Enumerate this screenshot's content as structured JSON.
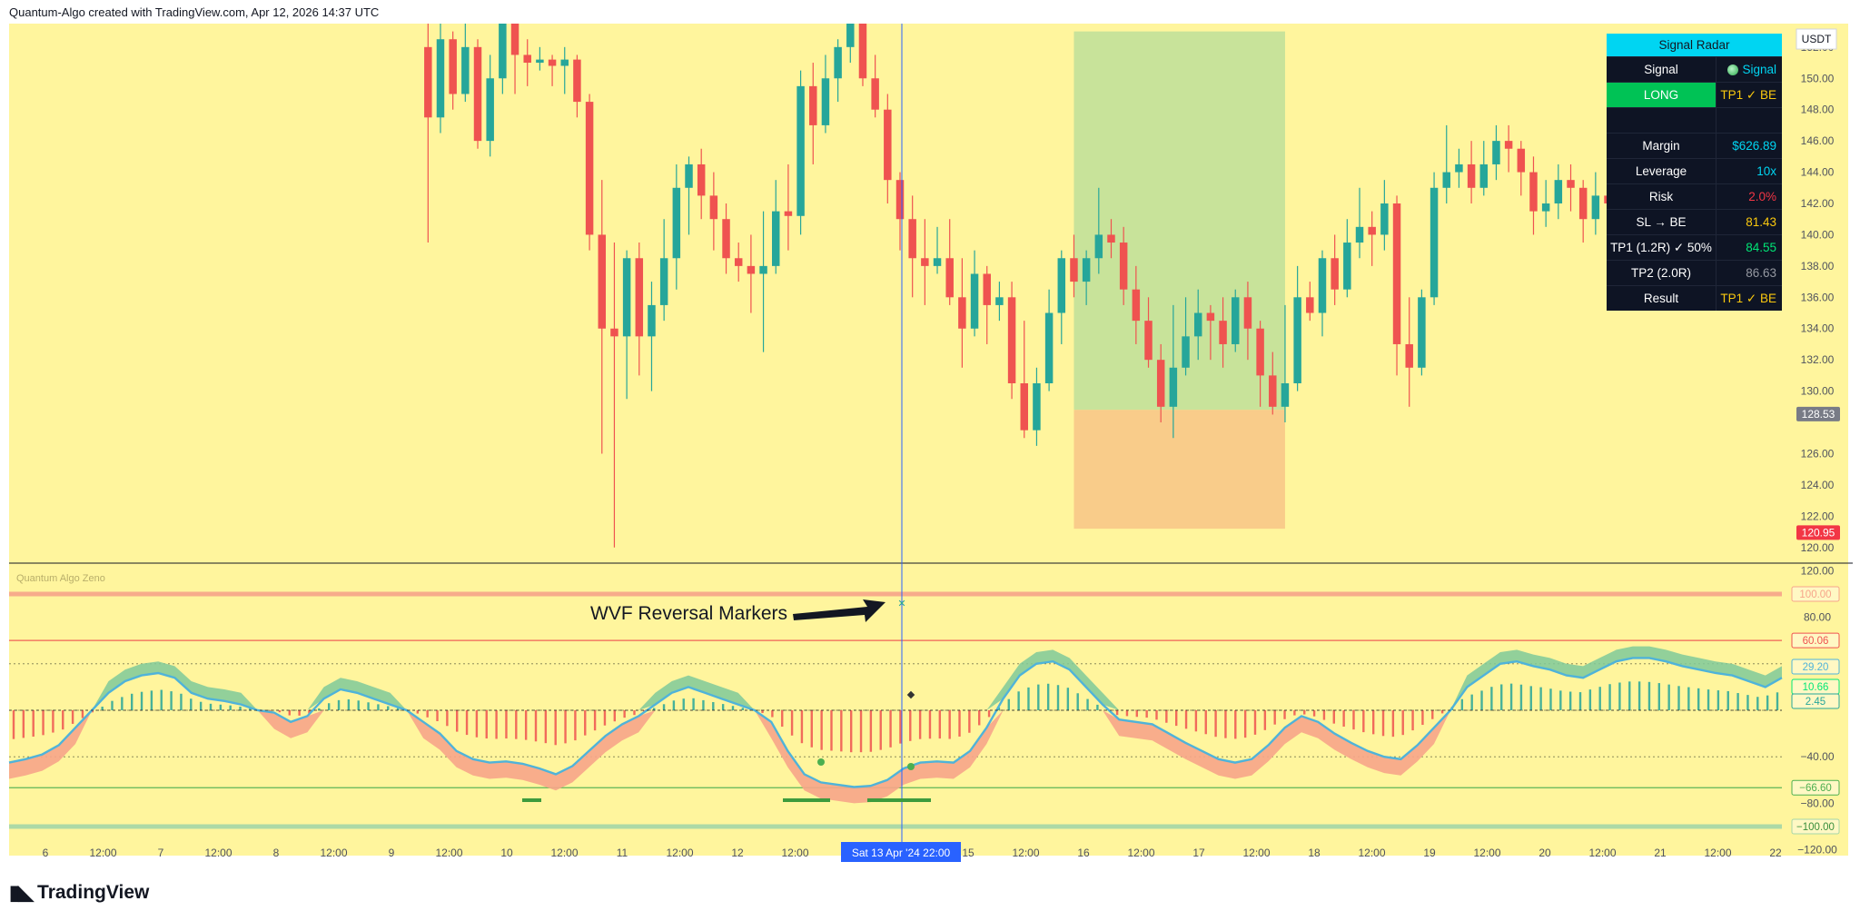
{
  "header": {
    "attribution": "Quantum-Algo created with TradingView.com, Apr 12, 2026 14:37 UTC"
  },
  "branding": {
    "logo_text": "TradingView",
    "logo_icon": "tradingview-logo-icon"
  },
  "indicator": {
    "name": "Quantum Algo Zeno"
  },
  "annotation": {
    "text": "WVF Reversal Markers"
  },
  "crosshair": {
    "date_label": "Sat 13 Apr '24   22:00"
  },
  "colors": {
    "background": "#fff59d",
    "bull": "#26a69a",
    "bear": "#ef5350",
    "profit_zone": "#c8e39a",
    "loss_zone": "#f9cc8a",
    "wave_line": "#4fb3d9",
    "wave_up_fill": "#7fc99a",
    "wave_down_fill": "#f7a58a",
    "crosshair": "#2962ff"
  },
  "signal_radar": {
    "title": "Signal Radar",
    "rows": [
      {
        "label": "Signal",
        "value": "Signal",
        "value_color": "#00d5f2",
        "icon": "green-dot-icon"
      },
      {
        "label": "LONG",
        "value": "TP1 ✓ BE",
        "value_color": "#f9c80e",
        "highlight": true
      },
      {
        "label": "",
        "value": ""
      },
      {
        "label": "Margin",
        "value": "$626.89",
        "value_color": "#00d5f2"
      },
      {
        "label": "Leverage",
        "value": "10x",
        "value_color": "#00d5f2"
      },
      {
        "label": "Risk",
        "value": "2.0%",
        "value_color": "#f23645"
      },
      {
        "label": "SL → BE",
        "value": "81.43",
        "value_color": "#f9c80e"
      },
      {
        "label": "TP1 (1.2R) ✓ 50%",
        "value": "84.55",
        "value_color": "#00e676"
      },
      {
        "label": "TP2 (2.0R)",
        "value": "86.63",
        "value_color": "#9598a1"
      },
      {
        "label": "Result",
        "value": "TP1 ✓ BE",
        "value_color": "#f9c80e"
      }
    ]
  },
  "chart_data": [
    {
      "type": "candlestick",
      "currency": "USDT",
      "ylim": [
        119,
        153.5
      ],
      "y_ticks": [
        "152.00",
        "150.00",
        "148.00",
        "146.00",
        "144.00",
        "142.00",
        "140.00",
        "138.00",
        "136.00",
        "134.00",
        "132.00",
        "130.00",
        "126.00",
        "124.00",
        "122.00",
        "120.00"
      ],
      "price_labels": [
        {
          "value": "128.53",
          "price": 128.53,
          "color": "#787b86"
        },
        {
          "value": "120.95",
          "price": 120.95,
          "color": "#f23645"
        }
      ],
      "x_labels": [
        "6",
        "12:00",
        "7",
        "12:00",
        "8",
        "12:00",
        "9",
        "12:00",
        "10",
        "12:00",
        "11",
        "12:00",
        "12",
        "12:00",
        "13",
        "00",
        "15",
        "12:00",
        "16",
        "12:00",
        "17",
        "12:00",
        "18",
        "12:00",
        "19",
        "12:00",
        "20",
        "12:00",
        "21",
        "12:00",
        "22"
      ],
      "trade_zone": {
        "entry": 128.8,
        "take_profit": 153.0,
        "stop_loss": 121.2,
        "start_index": 52,
        "end_index": 69
      },
      "candles": [
        [
          0,
          152.0,
          147.5,
          153.5,
          139.5
        ],
        [
          1,
          147.5,
          152.5,
          153.5,
          146.5
        ],
        [
          2,
          152.5,
          149.0,
          153.0,
          148.0
        ],
        [
          3,
          149.0,
          152.0,
          153.5,
          148.5
        ],
        [
          4,
          152.0,
          146.0,
          152.5,
          145.5
        ],
        [
          5,
          146.0,
          150.0,
          151.5,
          145.0
        ],
        [
          6,
          150.0,
          153.5,
          153.5,
          149.0
        ],
        [
          7,
          153.5,
          151.5,
          153.5,
          149.0
        ],
        [
          8,
          151.5,
          151.0,
          152.5,
          149.5
        ],
        [
          9,
          151.0,
          151.2,
          152.0,
          150.5
        ],
        [
          10,
          151.2,
          150.8,
          151.5,
          149.5
        ],
        [
          11,
          150.8,
          151.2,
          152.0,
          149.0
        ],
        [
          12,
          151.2,
          148.5,
          151.5,
          147.5
        ],
        [
          13,
          148.5,
          140.0,
          149.0,
          139.0
        ],
        [
          14,
          140.0,
          134.0,
          143.5,
          126.0
        ],
        [
          15,
          134.0,
          133.5,
          139.5,
          120.0
        ],
        [
          16,
          133.5,
          138.5,
          139.0,
          129.5
        ],
        [
          17,
          138.5,
          133.5,
          139.5,
          131.0
        ],
        [
          18,
          133.5,
          135.5,
          137.0,
          130.0
        ],
        [
          19,
          135.5,
          138.5,
          141.0,
          134.5
        ],
        [
          20,
          138.5,
          143.0,
          144.5,
          136.5
        ],
        [
          21,
          143.0,
          144.5,
          145.0,
          140.0
        ],
        [
          22,
          144.5,
          142.5,
          145.5,
          141.0
        ],
        [
          23,
          142.5,
          141.0,
          144.0,
          139.0
        ],
        [
          24,
          141.0,
          138.5,
          142.0,
          137.5
        ],
        [
          25,
          138.5,
          138.0,
          139.5,
          137.0
        ],
        [
          26,
          138.0,
          137.5,
          140.0,
          135.0
        ],
        [
          27,
          137.5,
          138.0,
          141.5,
          132.5
        ],
        [
          28,
          138.0,
          141.5,
          143.5,
          137.5
        ],
        [
          29,
          141.5,
          141.2,
          144.5,
          139.0
        ],
        [
          30,
          141.2,
          149.5,
          150.5,
          140.0
        ],
        [
          31,
          149.5,
          147.0,
          151.0,
          144.5
        ],
        [
          32,
          147.0,
          150.0,
          151.5,
          146.5
        ],
        [
          33,
          150.0,
          152.0,
          152.5,
          148.5
        ],
        [
          34,
          152.0,
          154.0,
          154.5,
          151.0
        ],
        [
          35,
          154.0,
          150.0,
          155.0,
          149.5
        ],
        [
          36,
          150.0,
          148.0,
          151.5,
          147.5
        ],
        [
          37,
          148.0,
          143.5,
          149.0,
          142.0
        ],
        [
          38,
          143.5,
          141.0,
          144.0,
          139.0
        ],
        [
          39,
          141.0,
          138.5,
          142.5,
          136.0
        ],
        [
          40,
          138.5,
          138.0,
          141.0,
          135.5
        ],
        [
          41,
          138.0,
          138.5,
          140.5,
          137.5
        ],
        [
          42,
          138.5,
          136.0,
          141.0,
          135.5
        ],
        [
          43,
          136.0,
          134.0,
          138.5,
          131.5
        ],
        [
          44,
          134.0,
          137.5,
          139.0,
          133.5
        ],
        [
          45,
          137.5,
          135.5,
          138.0,
          133.0
        ],
        [
          46,
          135.5,
          136.0,
          137.0,
          134.5
        ],
        [
          47,
          136.0,
          130.5,
          137.0,
          129.5
        ],
        [
          48,
          130.5,
          127.5,
          134.5,
          127.0
        ],
        [
          49,
          127.5,
          130.5,
          131.5,
          126.5
        ],
        [
          50,
          130.5,
          135.0,
          136.5,
          130.0
        ],
        [
          51,
          135.0,
          138.5,
          139.0,
          133.0
        ],
        [
          52,
          138.5,
          137.0,
          140.0,
          136.0
        ],
        [
          53,
          137.0,
          138.5,
          139.0,
          135.5
        ],
        [
          54,
          138.5,
          140.0,
          143.0,
          137.5
        ],
        [
          55,
          140.0,
          139.5,
          141.0,
          138.5
        ],
        [
          56,
          139.5,
          136.5,
          140.5,
          135.5
        ],
        [
          57,
          136.5,
          134.5,
          138.0,
          133.0
        ],
        [
          58,
          134.5,
          132.0,
          136.0,
          131.5
        ],
        [
          59,
          132.0,
          129.0,
          133.0,
          128.0
        ],
        [
          60,
          129.0,
          131.5,
          135.5,
          127.0
        ],
        [
          61,
          131.5,
          133.5,
          136.0,
          131.0
        ],
        [
          62,
          133.5,
          135.0,
          136.5,
          132.0
        ],
        [
          63,
          135.0,
          134.5,
          135.5,
          132.0
        ],
        [
          64,
          134.5,
          133.0,
          136.0,
          131.5
        ],
        [
          65,
          133.0,
          136.0,
          136.5,
          132.5
        ],
        [
          66,
          136.0,
          134.0,
          137.0,
          132.0
        ],
        [
          67,
          134.0,
          131.0,
          134.5,
          129.0
        ],
        [
          68,
          131.0,
          129.0,
          132.5,
          128.5
        ],
        [
          69,
          129.0,
          130.5,
          135.5,
          128.0
        ],
        [
          70,
          130.5,
          136.0,
          138.0,
          130.0
        ],
        [
          71,
          136.0,
          135.0,
          137.0,
          134.5
        ],
        [
          72,
          135.0,
          138.5,
          139.0,
          133.5
        ],
        [
          73,
          138.5,
          136.5,
          140.0,
          135.5
        ],
        [
          74,
          136.5,
          139.5,
          141.0,
          136.0
        ],
        [
          75,
          139.5,
          140.5,
          143.0,
          138.5
        ],
        [
          76,
          140.5,
          140.0,
          141.5,
          138.0
        ],
        [
          77,
          140.0,
          142.0,
          143.5,
          139.0
        ],
        [
          78,
          142.0,
          133.0,
          142.5,
          131.0
        ],
        [
          79,
          133.0,
          131.5,
          136.0,
          129.0
        ],
        [
          80,
          131.5,
          136.0,
          136.5,
          131.0
        ],
        [
          81,
          136.0,
          143.0,
          144.0,
          135.5
        ],
        [
          82,
          143.0,
          144.0,
          147.0,
          142.0
        ],
        [
          83,
          144.0,
          144.5,
          145.5,
          143.0
        ],
        [
          84,
          144.5,
          143.0,
          146.0,
          142.0
        ],
        [
          85,
          143.0,
          144.5,
          146.0,
          142.5
        ],
        [
          86,
          144.5,
          146.0,
          147.0,
          143.5
        ],
        [
          87,
          146.0,
          145.5,
          147.0,
          144.0
        ],
        [
          88,
          145.5,
          144.0,
          146.0,
          142.5
        ],
        [
          89,
          144.0,
          141.5,
          145.0,
          140.0
        ],
        [
          90,
          141.5,
          142.0,
          143.5,
          140.5
        ],
        [
          91,
          142.0,
          143.5,
          144.5,
          141.0
        ],
        [
          92,
          143.5,
          143.0,
          144.5,
          141.5
        ],
        [
          93,
          143.0,
          141.0,
          143.5,
          139.5
        ],
        [
          94,
          141.0,
          142.5,
          144.0,
          140.0
        ],
        [
          95,
          142.5,
          142.0,
          143.0,
          141.0
        ],
        [
          96,
          142.0,
          141.0,
          142.5,
          140.0
        ],
        [
          97,
          141.0,
          140.5,
          141.5,
          139.5
        ],
        [
          98,
          140.5,
          141.0,
          142.0,
          139.0
        ],
        [
          99,
          141.0,
          140.0,
          141.5,
          138.5
        ],
        [
          100,
          140.0,
          138.5,
          140.5,
          137.5
        ],
        [
          101,
          138.5,
          137.0,
          139.0,
          136.0
        ],
        [
          102,
          137.0,
          139.5,
          140.0,
          136.5
        ],
        [
          103,
          139.5,
          143.5,
          144.0,
          139.0
        ],
        [
          104,
          143.5,
          148.0,
          148.5,
          143.0
        ],
        [
          105,
          148.0,
          151.5,
          152.0,
          146.5
        ]
      ]
    },
    {
      "type": "oscillator",
      "name": "Quantum Algo Zeno",
      "ylim": [
        -125,
        125
      ],
      "y_ticks": [
        "120.00",
        "80.00",
        "40.00",
        "−40.00",
        "−80.00",
        "−120.00"
      ],
      "levels": [
        {
          "value": "100.00",
          "level": 100,
          "color": "#f7a58a"
        },
        {
          "value": "60.06",
          "level": 60.06,
          "color": "#ef5350"
        },
        {
          "value": "−66.60",
          "level": -66.6,
          "color": "#4caf50"
        },
        {
          "value": "−100.00",
          "level": -100,
          "color": "#a5d6a7"
        }
      ],
      "current_values": [
        {
          "value": "29.20",
          "color": "#4fb3d9"
        },
        {
          "value": "10.66",
          "color": "#00e676"
        },
        {
          "value": "2.45",
          "color": "#26a69a"
        }
      ],
      "wave": [
        -45,
        -42,
        -38,
        -30,
        -15,
        0,
        15,
        25,
        30,
        32,
        28,
        15,
        10,
        8,
        5,
        0,
        -2,
        -10,
        -5,
        10,
        18,
        15,
        10,
        5,
        0,
        -10,
        -20,
        -35,
        -42,
        -45,
        -44,
        -46,
        -50,
        -55,
        -48,
        -35,
        -22,
        -12,
        -5,
        5,
        15,
        20,
        15,
        10,
        5,
        0,
        -10,
        -35,
        -55,
        -62,
        -64,
        -66,
        -65,
        -60,
        -50,
        -45,
        -44,
        -45,
        -35,
        -15,
        10,
        30,
        40,
        42,
        35,
        20,
        5,
        -8,
        -10,
        -12,
        -20,
        -28,
        -35,
        -42,
        -45,
        -42,
        -30,
        -15,
        -5,
        -10,
        -20,
        -28,
        -35,
        -40,
        -42,
        -30,
        -15,
        0,
        20,
        30,
        40,
        42,
        38,
        35,
        30,
        28,
        35,
        42,
        45,
        45,
        42,
        38,
        35,
        32,
        30,
        25,
        20,
        28
      ]
    }
  ]
}
